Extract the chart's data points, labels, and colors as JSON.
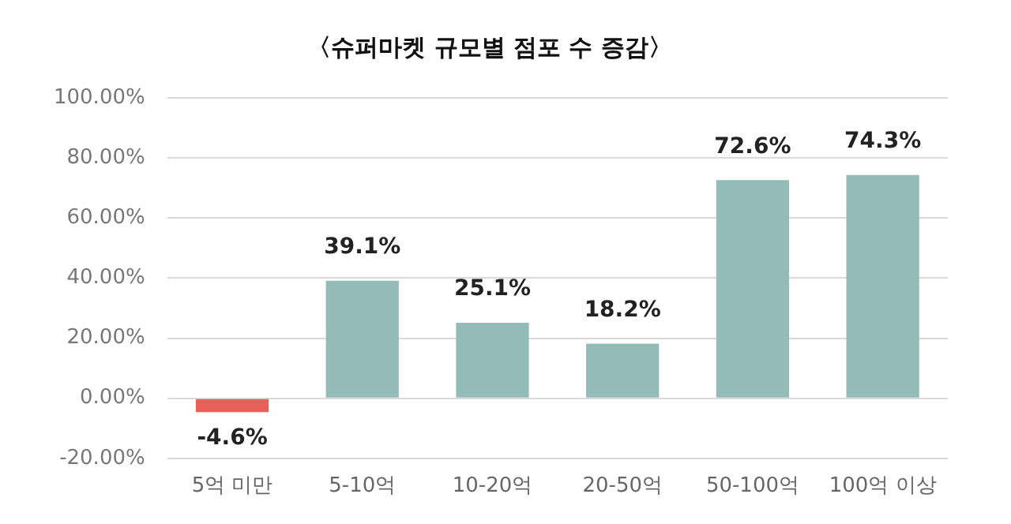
{
  "chart_data": {
    "type": "bar",
    "title": "〈슈퍼마켓 규모별 점포 수 증감〉",
    "categories": [
      "5억 미만",
      "5-10억",
      "10-20억",
      "20-50억",
      "50-100억",
      "100억 이상"
    ],
    "values": [
      -4.6,
      39.1,
      25.1,
      18.2,
      72.6,
      74.3
    ],
    "colors": [
      "#e8605a",
      "#93bcb9",
      "#93bcb9",
      "#93bcb9",
      "#93bcb9",
      "#93bcb9"
    ],
    "value_labels": [
      "-4.6%",
      "39.1%",
      "25.1%",
      "18.2%",
      "72.6%",
      "74.3%"
    ],
    "ylim": [
      -20,
      100
    ],
    "yticks": [
      {
        "value": -20,
        "label": "-20.00%"
      },
      {
        "value": 0,
        "label": "0.00%"
      },
      {
        "value": 20,
        "label": "20.00%"
      },
      {
        "value": 40,
        "label": "40.00%"
      },
      {
        "value": 60,
        "label": "60.00%"
      },
      {
        "value": 80,
        "label": "80.00%"
      },
      {
        "value": 100,
        "label": "100.00%"
      }
    ],
    "grid": "y",
    "legend": false
  }
}
